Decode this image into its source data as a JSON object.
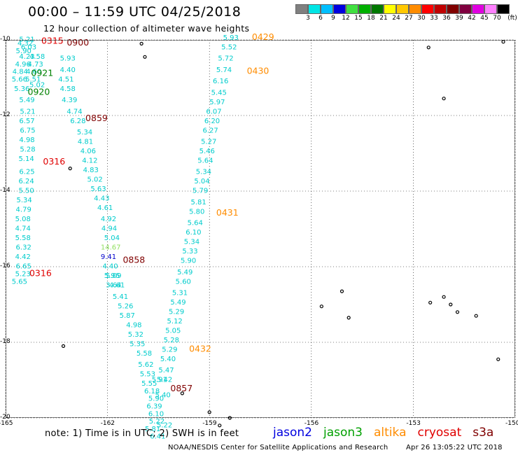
{
  "title": "00:00 – 11:59 UTC 04/25/2018",
  "subtitle": "12 hour collection of altimeter wave heights",
  "colorbar": {
    "colors": [
      "#808080",
      "#00e5e5",
      "#00bfff",
      "#0000e0",
      "#40e040",
      "#00b000",
      "#007800",
      "#ffff00",
      "#ffc800",
      "#ff8c00",
      "#ff0000",
      "#c00000",
      "#800000",
      "#800040",
      "#e000e0",
      "#ff80ff",
      "#000000"
    ],
    "labels": [
      "3",
      "6",
      "9",
      "12",
      "15",
      "18",
      "21",
      "24",
      "27",
      "30",
      "33",
      "36",
      "39",
      "42",
      "45",
      "70",
      "(ft)"
    ]
  },
  "axes": {
    "lat_labels": [
      "-10",
      "-12",
      "-14",
      "-16",
      "-18",
      "-20"
    ],
    "lon_labels": [
      "-165",
      "-162",
      "-159",
      "-156",
      "-153",
      "-150"
    ]
  },
  "chart_data": {
    "type": "scatter",
    "xlim": [
      -165,
      -150
    ],
    "ylim": [
      -20,
      -10
    ],
    "x_ticks": [
      -165,
      -162,
      -159,
      -156,
      -153,
      -150
    ],
    "y_ticks": [
      -10,
      -12,
      -14,
      -16,
      -18,
      -20
    ],
    "grid": true,
    "series": [
      {
        "name": "cryosat",
        "color": "#00cccc",
        "points": [
          {
            "lat": -10.05,
            "lon": -164.6,
            "swh": "5.21"
          },
          {
            "lat": -10.15,
            "lon": -164.65,
            "swh": "4.32"
          },
          {
            "lat": -10.25,
            "lon": -164.55,
            "swh": "6.03"
          },
          {
            "lat": -10.35,
            "lon": -164.7,
            "swh": "5.90"
          },
          {
            "lat": -10.5,
            "lon": -164.6,
            "swh": "4.23"
          },
          {
            "lat": -10.7,
            "lon": -164.72,
            "swh": "4.96"
          },
          {
            "lat": -10.9,
            "lon": -164.8,
            "swh": "4.84"
          },
          {
            "lat": -11.1,
            "lon": -164.82,
            "swh": "5.66"
          },
          {
            "lat": -11.35,
            "lon": -164.75,
            "swh": "5.36"
          },
          {
            "lat": -11.65,
            "lon": -164.6,
            "swh": "5.49"
          },
          {
            "lat": -11.95,
            "lon": -164.58,
            "swh": "5.21"
          },
          {
            "lat": -12.2,
            "lon": -164.6,
            "swh": "6.57"
          },
          {
            "lat": -12.45,
            "lon": -164.58,
            "swh": "6.75"
          },
          {
            "lat": -12.7,
            "lon": -164.6,
            "swh": "4.98"
          },
          {
            "lat": -12.95,
            "lon": -164.58,
            "swh": "5.28"
          },
          {
            "lat": -13.2,
            "lon": -164.62,
            "swh": "5.14"
          },
          {
            "lat": -13.55,
            "lon": -164.6,
            "swh": "6.25"
          },
          {
            "lat": -13.8,
            "lon": -164.62,
            "swh": "6.24"
          },
          {
            "lat": -14.05,
            "lon": -164.62,
            "swh": "5.50"
          },
          {
            "lat": -14.3,
            "lon": -164.68,
            "swh": "5.34"
          },
          {
            "lat": -14.55,
            "lon": -164.7,
            "swh": "4.79"
          },
          {
            "lat": -14.8,
            "lon": -164.72,
            "swh": "5.08"
          },
          {
            "lat": -15.05,
            "lon": -164.72,
            "swh": "4.74"
          },
          {
            "lat": -15.3,
            "lon": -164.72,
            "swh": "5.58"
          },
          {
            "lat": -15.55,
            "lon": -164.7,
            "swh": "6.32"
          },
          {
            "lat": -15.8,
            "lon": -164.72,
            "swh": "4.42"
          },
          {
            "lat": -16.05,
            "lon": -164.7,
            "swh": "6.65"
          },
          {
            "lat": -16.25,
            "lon": -164.72,
            "swh": "5.23"
          },
          {
            "lat": -16.45,
            "lon": -164.82,
            "swh": "5.65"
          }
        ]
      },
      {
        "name": "altika",
        "color": "#00cccc",
        "points": [
          {
            "lat": -10.5,
            "lon": -164.3,
            "swh": "4.58"
          },
          {
            "lat": -10.7,
            "lon": -164.35,
            "swh": "4.73"
          },
          {
            "lat": -10.9,
            "lon": -164.4,
            "swh": "4.60"
          },
          {
            "lat": -11.1,
            "lon": -164.42,
            "swh": "5.51"
          },
          {
            "lat": -11.25,
            "lon": -164.3,
            "swh": "5.02"
          },
          {
            "lat": -10.55,
            "lon": -163.4,
            "swh": "5.93"
          },
          {
            "lat": -10.85,
            "lon": -163.4,
            "swh": "4.40"
          },
          {
            "lat": -11.1,
            "lon": -163.45,
            "swh": "4.51"
          },
          {
            "lat": -11.35,
            "lon": -163.4,
            "swh": "4.58"
          },
          {
            "lat": -11.65,
            "lon": -163.35,
            "swh": "4.39"
          },
          {
            "lat": -11.95,
            "lon": -163.2,
            "swh": "4.74"
          },
          {
            "lat": -12.2,
            "lon": -163.1,
            "swh": "6.28"
          },
          {
            "lat": -12.5,
            "lon": -162.9,
            "swh": "5.34"
          },
          {
            "lat": -12.75,
            "lon": -162.88,
            "swh": "4.81"
          },
          {
            "lat": -13.0,
            "lon": -162.8,
            "swh": "4.06"
          },
          {
            "lat": -13.25,
            "lon": -162.75,
            "swh": "4.12"
          },
          {
            "lat": -13.5,
            "lon": -162.72,
            "swh": "4.83"
          },
          {
            "lat": -13.75,
            "lon": -162.6,
            "swh": "5.02"
          },
          {
            "lat": -14.0,
            "lon": -162.5,
            "swh": "5.63"
          },
          {
            "lat": -14.25,
            "lon": -162.4,
            "swh": "4.43"
          },
          {
            "lat": -14.5,
            "lon": -162.3,
            "swh": "4.61"
          },
          {
            "lat": -14.8,
            "lon": -162.2,
            "swh": "4.92"
          },
          {
            "lat": -15.05,
            "lon": -162.18,
            "swh": "4.94"
          },
          {
            "lat": -15.3,
            "lon": -162.1,
            "swh": "5.04"
          },
          {
            "lat": -16.3,
            "lon": -162.05,
            "swh": "5.09"
          },
          {
            "lat": -16.55,
            "lon": -161.95,
            "swh": "4.61"
          },
          {
            "lat": -16.85,
            "lon": -161.85,
            "swh": "5.41"
          },
          {
            "lat": -17.1,
            "lon": -161.7,
            "swh": "5.26"
          },
          {
            "lat": -17.35,
            "lon": -161.65,
            "swh": "5.87"
          },
          {
            "lat": -17.6,
            "lon": -161.45,
            "swh": "4.98"
          },
          {
            "lat": -17.85,
            "lon": -161.4,
            "swh": "5.32"
          },
          {
            "lat": -18.1,
            "lon": -161.35,
            "swh": "5.35"
          },
          {
            "lat": -18.35,
            "lon": -161.15,
            "swh": "5.58"
          },
          {
            "lat": -18.65,
            "lon": -161.1,
            "swh": "5.62"
          },
          {
            "lat": -18.9,
            "lon": -161.05,
            "swh": "5.53"
          },
          {
            "lat": -19.15,
            "lon": -161.0,
            "swh": "5.55"
          },
          {
            "lat": -19.35,
            "lon": -160.92,
            "swh": "6.18"
          },
          {
            "lat": -19.55,
            "lon": -160.8,
            "swh": "5.90"
          },
          {
            "lat": -19.75,
            "lon": -160.85,
            "swh": "6.39"
          },
          {
            "lat": -19.95,
            "lon": -160.8,
            "swh": "6.10"
          },
          {
            "lat": -20.15,
            "lon": -160.78,
            "swh": "5.22"
          },
          {
            "lat": -20.35,
            "lon": -160.9,
            "swh": "5.81"
          },
          {
            "lat": -20.55,
            "lon": -160.75,
            "swh": "6.41"
          },
          {
            "lat": -19.05,
            "lon": -160.7,
            "swh": "5.91"
          },
          {
            "lat": -19.45,
            "lon": -160.6,
            "swh": "5.40"
          },
          {
            "lat": -20.25,
            "lon": -160.55,
            "swh": "5.22"
          }
        ]
      },
      {
        "name": "jason3",
        "color": "#00cccc",
        "points": [
          {
            "lat": -10.0,
            "lon": -158.6,
            "swh": "5.93"
          },
          {
            "lat": -10.25,
            "lon": -158.65,
            "swh": "5.52"
          },
          {
            "lat": -10.55,
            "lon": -158.75,
            "swh": "5.72"
          },
          {
            "lat": -10.85,
            "lon": -158.8,
            "swh": "5.74"
          },
          {
            "lat": -11.15,
            "lon": -158.9,
            "swh": "6.16"
          },
          {
            "lat": -11.45,
            "lon": -158.95,
            "swh": "5.45"
          },
          {
            "lat": -11.7,
            "lon": -159.0,
            "swh": "5.97"
          },
          {
            "lat": -11.95,
            "lon": -159.1,
            "swh": "6.07"
          },
          {
            "lat": -12.2,
            "lon": -159.15,
            "swh": "6.20"
          },
          {
            "lat": -12.45,
            "lon": -159.2,
            "swh": "6.27"
          },
          {
            "lat": -12.75,
            "lon": -159.25,
            "swh": "5.27"
          },
          {
            "lat": -13.0,
            "lon": -159.3,
            "swh": "5.46"
          },
          {
            "lat": -13.25,
            "lon": -159.35,
            "swh": "5.64"
          },
          {
            "lat": -13.55,
            "lon": -159.4,
            "swh": "5.34"
          },
          {
            "lat": -13.8,
            "lon": -159.45,
            "swh": "5.04"
          },
          {
            "lat": -14.05,
            "lon": -159.5,
            "swh": "5.79"
          },
          {
            "lat": -14.35,
            "lon": -159.55,
            "swh": "5.81"
          },
          {
            "lat": -14.6,
            "lon": -159.6,
            "swh": "5.80"
          },
          {
            "lat": -14.9,
            "lon": -159.65,
            "swh": "5.64"
          },
          {
            "lat": -15.15,
            "lon": -159.7,
            "swh": "6.10"
          },
          {
            "lat": -15.4,
            "lon": -159.75,
            "swh": "5.34"
          },
          {
            "lat": -15.65,
            "lon": -159.8,
            "swh": "5.33"
          },
          {
            "lat": -15.9,
            "lon": -159.85,
            "swh": "5.90"
          },
          {
            "lat": -16.2,
            "lon": -159.95,
            "swh": "5.49"
          },
          {
            "lat": -16.45,
            "lon": -160.0,
            "swh": "5.60"
          },
          {
            "lat": -16.75,
            "lon": -160.1,
            "swh": "5.31"
          },
          {
            "lat": -17.0,
            "lon": -160.15,
            "swh": "5.49"
          },
          {
            "lat": -17.25,
            "lon": -160.2,
            "swh": "5.29"
          },
          {
            "lat": -17.5,
            "lon": -160.25,
            "swh": "5.12"
          },
          {
            "lat": -17.75,
            "lon": -160.3,
            "swh": "5.05"
          },
          {
            "lat": -18.0,
            "lon": -160.35,
            "swh": "5.28"
          },
          {
            "lat": -18.25,
            "lon": -160.4,
            "swh": "5.29"
          },
          {
            "lat": -18.5,
            "lon": -160.45,
            "swh": "5.40"
          },
          {
            "lat": -18.8,
            "lon": -160.5,
            "swh": "5.47"
          },
          {
            "lat": -19.05,
            "lon": -160.55,
            "swh": "5.42"
          }
        ]
      },
      {
        "name": "misc",
        "points": [
          {
            "lat": -15.55,
            "lon": -162.2,
            "swh": "14.67",
            "color": "#90e060"
          },
          {
            "lat": -15.8,
            "lon": -162.2,
            "swh": "9.41",
            "color": "#0000cc"
          },
          {
            "lat": -16.05,
            "lon": -162.15,
            "swh": "4.40",
            "color": "#00cccc"
          },
          {
            "lat": -16.3,
            "lon": -162.1,
            "swh": "5.96",
            "color": "#00cccc"
          },
          {
            "lat": -16.55,
            "lon": -162.05,
            "swh": "3.64",
            "color": "#00cccc"
          }
        ]
      }
    ]
  },
  "time_labels": [
    {
      "text": "0315",
      "color": "#e00000",
      "lat": -10.1,
      "lon": -163.95
    },
    {
      "text": "0900",
      "color": "#800000",
      "lat": -10.15,
      "lon": -163.2
    },
    {
      "text": "0921",
      "color": "#008000",
      "lat": -10.95,
      "lon": -164.25
    },
    {
      "text": "0920",
      "color": "#008000",
      "lat": -11.45,
      "lon": -164.35
    },
    {
      "text": "0859",
      "color": "#800000",
      "lat": -12.15,
      "lon": -162.65
    },
    {
      "text": "0316",
      "color": "#e00000",
      "lat": -13.3,
      "lon": -163.9
    },
    {
      "text": "0316",
      "color": "#e00000",
      "lat": -16.25,
      "lon": -164.3
    },
    {
      "text": "0858",
      "color": "#800000",
      "lat": -15.9,
      "lon": -161.55
    },
    {
      "text": "0857",
      "color": "#800000",
      "lat": -19.3,
      "lon": -160.15
    },
    {
      "text": "0429",
      "color": "#ff8c00",
      "lat": -10.0,
      "lon": -157.75
    },
    {
      "text": "0430",
      "color": "#ff8c00",
      "lat": -10.9,
      "lon": -157.9
    },
    {
      "text": "0431",
      "color": "#ff8c00",
      "lat": -14.65,
      "lon": -158.8
    },
    {
      "text": "0432",
      "color": "#ff8c00",
      "lat": -18.25,
      "lon": -159.6
    }
  ],
  "islands": [
    {
      "lat": -10.1,
      "lon": -161.0
    },
    {
      "lat": -10.45,
      "lon": -160.9
    },
    {
      "lat": -13.4,
      "lon": -163.1
    },
    {
      "lat": -18.1,
      "lon": -163.3
    },
    {
      "lat": -19.35,
      "lon": -159.8
    },
    {
      "lat": -19.85,
      "lon": -159.0
    },
    {
      "lat": -20.2,
      "lon": -158.7
    },
    {
      "lat": -20.0,
      "lon": -158.4
    },
    {
      "lat": -10.2,
      "lon": -152.55
    },
    {
      "lat": -11.55,
      "lon": -152.1
    },
    {
      "lat": -16.65,
      "lon": -155.1
    },
    {
      "lat": -17.05,
      "lon": -155.7
    },
    {
      "lat": -17.35,
      "lon": -154.9
    },
    {
      "lat": -16.95,
      "lon": -152.5
    },
    {
      "lat": -16.8,
      "lon": -152.1
    },
    {
      "lat": -17.0,
      "lon": -151.9
    },
    {
      "lat": -17.2,
      "lon": -151.7
    },
    {
      "lat": -17.3,
      "lon": -151.15
    },
    {
      "lat": -18.45,
      "lon": -150.5
    },
    {
      "lat": -10.05,
      "lon": -150.35
    }
  ],
  "footer": {
    "note": "note: 1) Time is in UTC; 2) SWH is in feet",
    "legend": [
      {
        "name": "jason2",
        "color": "#0000e0"
      },
      {
        "name": "jason3",
        "color": "#00a000"
      },
      {
        "name": "altika",
        "color": "#ff8c00"
      },
      {
        "name": "cryosat",
        "color": "#e00000"
      },
      {
        "name": "s3a",
        "color": "#800000"
      }
    ],
    "credit": "NOAA/NESDIS Center for Satellite Applications and Research",
    "timestamp": "Apr 26 13:05:22 UTC 2018"
  }
}
